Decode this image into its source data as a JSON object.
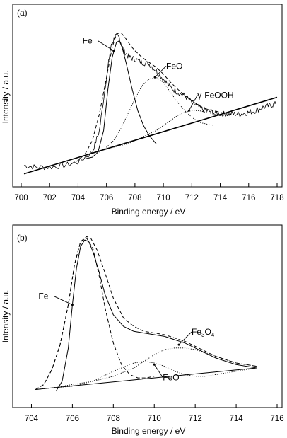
{
  "chart_data": [
    {
      "panel_label": "(a)",
      "type": "line",
      "xlabel": "Binding energy / eV",
      "ylabel": "Intensity / a.u.",
      "xlim": [
        700,
        718
      ],
      "x_ticks": [
        "700",
        "702",
        "704",
        "706",
        "708",
        "710",
        "712",
        "714",
        "716",
        "718"
      ],
      "grid": false,
      "annotations": [
        {
          "text": "Fe",
          "target_x": 706.5,
          "target_y": 0.78
        },
        {
          "text": "FeO",
          "target_x": 709.4,
          "target_y": 0.62
        },
        {
          "text": "γ-FeOOH",
          "target_x": 711.8,
          "target_y": 0.42
        }
      ],
      "series": [
        {
          "style": "noisy",
          "x": [
            700.2,
            701,
            702,
            703,
            704,
            705,
            705.5,
            706,
            706.3,
            706.6,
            706.9,
            707.2,
            707.6,
            708,
            708.5,
            709,
            709.5,
            710,
            710.5,
            711,
            711.5,
            712,
            712.5,
            713,
            713.5,
            714,
            714.5,
            715,
            715.5,
            716,
            716.5,
            717,
            717.5,
            717.9
          ],
          "y": [
            0.09,
            0.08,
            0.08,
            0.09,
            0.11,
            0.17,
            0.3,
            0.62,
            0.8,
            0.87,
            0.86,
            0.78,
            0.74,
            0.73,
            0.71,
            0.7,
            0.66,
            0.61,
            0.56,
            0.53,
            0.51,
            0.47,
            0.44,
            0.42,
            0.41,
            0.4,
            0.4,
            0.4,
            0.4,
            0.41,
            0.42,
            0.44,
            0.45,
            0.46
          ]
        },
        {
          "style": "dashed",
          "x": [
            703.5,
            704,
            704.5,
            705,
            705.5,
            706,
            706.4,
            706.7,
            707,
            707.3,
            707.7,
            708,
            708.5,
            709,
            709.5,
            710,
            710.5,
            711,
            711.5,
            712,
            712.5,
            713,
            713.5,
            714,
            714.5
          ],
          "y": [
            0.1,
            0.12,
            0.16,
            0.24,
            0.4,
            0.62,
            0.8,
            0.88,
            0.89,
            0.86,
            0.81,
            0.78,
            0.74,
            0.71,
            0.68,
            0.64,
            0.59,
            0.55,
            0.51,
            0.48,
            0.45,
            0.43,
            0.42,
            0.41,
            0.4
          ]
        },
        {
          "style": "solid",
          "x": [
            704.5,
            705,
            705.4,
            705.8,
            706.1,
            706.4,
            706.7,
            706.9,
            707.1,
            707.4,
            707.8,
            708.2,
            708.6,
            709,
            709.5
          ],
          "y": [
            0.13,
            0.14,
            0.17,
            0.3,
            0.55,
            0.74,
            0.83,
            0.84,
            0.8,
            0.7,
            0.55,
            0.42,
            0.33,
            0.27,
            0.22
          ]
        },
        {
          "style": "dotted",
          "x": [
            705.5,
            706,
            706.5,
            707,
            707.5,
            708,
            708.5,
            709,
            709.5,
            710,
            710.5,
            711,
            711.5,
            712,
            712.5,
            713,
            713.5
          ],
          "y": [
            0.17,
            0.2,
            0.24,
            0.31,
            0.4,
            0.49,
            0.57,
            0.61,
            0.62,
            0.59,
            0.53,
            0.47,
            0.42,
            0.38,
            0.35,
            0.34,
            0.33
          ]
        },
        {
          "style": "dotted",
          "x": [
            706.5,
            707,
            707.5,
            708,
            708.5,
            709,
            709.5,
            710,
            710.5,
            711,
            711.5,
            712,
            712.5,
            713,
            713.5,
            714,
            714.5
          ],
          "y": [
            0.2,
            0.21,
            0.22,
            0.24,
            0.26,
            0.28,
            0.3,
            0.33,
            0.36,
            0.39,
            0.41,
            0.42,
            0.42,
            0.41,
            0.4,
            0.39,
            0.39
          ]
        },
        {
          "style": "solid-bold",
          "x": [
            700.2,
            718
          ],
          "y": [
            0.04,
            0.5
          ]
        }
      ]
    },
    {
      "panel_label": "(b)",
      "type": "line",
      "xlabel": "Binding energy / eV",
      "ylabel": "Intensity / a.u.",
      "xlim": [
        703.5,
        716
      ],
      "x_ticks": [
        "704",
        "706",
        "708",
        "710",
        "712",
        "714",
        "716"
      ],
      "grid": false,
      "annotations": [
        {
          "text": "Fe",
          "target_x": 706.0,
          "target_y": 0.58
        },
        {
          "text": "Fe3O4",
          "target_x": 711.2,
          "target_y": 0.34
        },
        {
          "text": "FeO",
          "target_x": 710.0,
          "target_y": 0.22
        }
      ],
      "series": [
        {
          "style": "solid",
          "x": [
            705.2,
            705.5,
            705.8,
            706.0,
            706.2,
            706.4,
            706.6,
            706.8,
            707.0,
            707.3,
            707.6,
            708.0,
            708.5,
            709.0,
            709.5,
            710.0,
            710.5,
            711.0,
            711.5,
            712.0,
            712.5,
            713.0,
            713.5,
            714.0,
            714.5,
            715.0
          ],
          "y": [
            0.06,
            0.12,
            0.32,
            0.58,
            0.8,
            0.93,
            0.97,
            0.96,
            0.9,
            0.78,
            0.64,
            0.52,
            0.45,
            0.42,
            0.41,
            0.4,
            0.39,
            0.37,
            0.35,
            0.32,
            0.29,
            0.26,
            0.24,
            0.22,
            0.21,
            0.2
          ]
        },
        {
          "style": "dashed",
          "x": [
            704.2,
            704.6,
            705.0,
            705.4,
            705.8,
            706.1,
            706.4,
            706.7,
            706.9,
            707.2,
            707.6,
            708.0,
            708.5,
            709.0,
            709.5,
            710.0,
            710.5,
            711.0,
            711.5,
            712.0,
            712.5,
            713.0,
            713.5,
            714.0,
            714.5,
            715.0
          ],
          "y": [
            0.07,
            0.1,
            0.19,
            0.34,
            0.58,
            0.82,
            0.96,
            0.99,
            0.98,
            0.91,
            0.77,
            0.62,
            0.5,
            0.45,
            0.42,
            0.41,
            0.4,
            0.38,
            0.36,
            0.33,
            0.3,
            0.27,
            0.25,
            0.23,
            0.22,
            0.21
          ]
        },
        {
          "style": "dashed",
          "x": [
            704.2,
            704.6,
            705.0,
            705.4,
            705.8,
            706.1,
            706.4,
            706.7,
            707.0,
            707.3,
            707.6,
            708.0,
            708.4,
            708.8,
            709.2,
            709.6,
            710.0
          ],
          "y": [
            0.07,
            0.1,
            0.19,
            0.34,
            0.58,
            0.82,
            0.96,
            0.98,
            0.92,
            0.76,
            0.56,
            0.35,
            0.22,
            0.16,
            0.14,
            0.14,
            0.15
          ]
        },
        {
          "style": "dotted",
          "x": [
            704.2,
            705,
            706,
            707,
            708,
            709,
            709.5,
            710,
            710.5,
            711,
            711.5,
            712,
            712.5,
            713,
            714,
            715
          ],
          "y": [
            0.07,
            0.08,
            0.09,
            0.12,
            0.18,
            0.23,
            0.24,
            0.23,
            0.21,
            0.18,
            0.16,
            0.15,
            0.15,
            0.16,
            0.18,
            0.2
          ]
        },
        {
          "style": "dotted",
          "x": [
            704.2,
            705,
            706,
            707,
            708,
            709,
            709.5,
            710,
            710.5,
            711,
            711.5,
            712,
            712.5,
            713,
            713.5,
            714,
            714.5,
            715
          ],
          "y": [
            0.07,
            0.08,
            0.1,
            0.12,
            0.15,
            0.2,
            0.24,
            0.28,
            0.31,
            0.32,
            0.32,
            0.31,
            0.29,
            0.27,
            0.25,
            0.23,
            0.22,
            0.21
          ]
        },
        {
          "style": "solid",
          "x": [
            704.2,
            715
          ],
          "y": [
            0.07,
            0.2
          ]
        }
      ]
    }
  ]
}
